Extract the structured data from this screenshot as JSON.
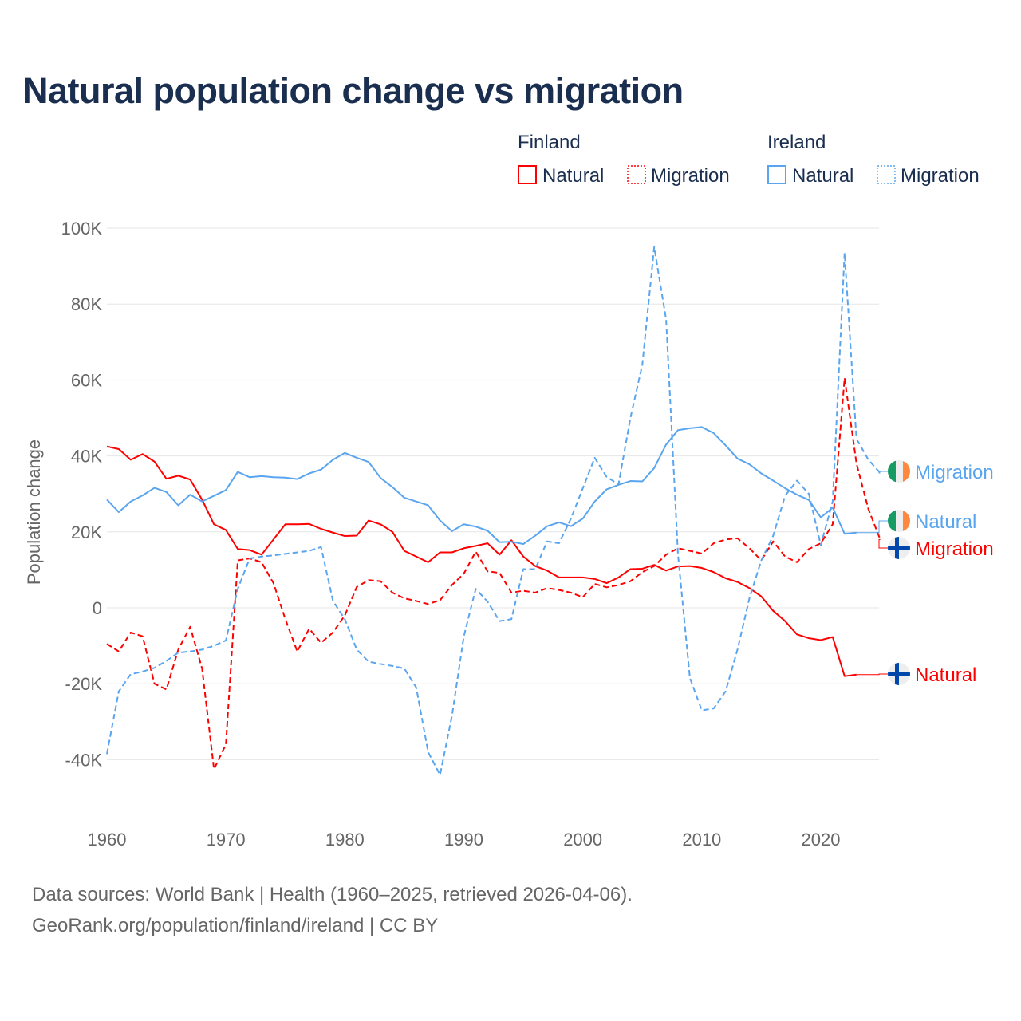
{
  "chart_data": {
    "type": "line",
    "title": "Natural population change vs migration",
    "xlabel": "",
    "ylabel": "Population change",
    "xlim": [
      1960,
      2025
    ],
    "ylim": [
      -50000,
      100000
    ],
    "x_ticks": [
      "1960",
      "1970",
      "1980",
      "1990",
      "2000",
      "2010",
      "2020"
    ],
    "y_ticks": [
      {
        "value": 100000,
        "label": "100K"
      },
      {
        "value": 80000,
        "label": "80K"
      },
      {
        "value": 60000,
        "label": "60K"
      },
      {
        "value": 40000,
        "label": "40K"
      },
      {
        "value": 20000,
        "label": "20K"
      },
      {
        "value": 0,
        "label": "0"
      },
      {
        "value": -20000,
        "label": "-20K"
      },
      {
        "value": -40000,
        "label": "-40K"
      }
    ],
    "grid": true,
    "legend": {
      "placement": "top-right",
      "groups": [
        {
          "name": "Finland",
          "entries": [
            "Natural",
            "Migration"
          ]
        },
        {
          "name": "Ireland",
          "entries": [
            "Natural",
            "Migration"
          ]
        }
      ]
    },
    "start_year": 1960,
    "series": [
      {
        "country": "Finland",
        "name": "Natural",
        "label": "Natural",
        "color": "#ff0000",
        "dash": false,
        "flag": "finland",
        "values": [
          42.5,
          41.8,
          39,
          40.5,
          38.5,
          34,
          34.8,
          33.8,
          28.5,
          22,
          20.5,
          15.5,
          15.2,
          14,
          18,
          22,
          22,
          22.1,
          20.8,
          19.8,
          18.9,
          19,
          23,
          22,
          20,
          15,
          13.5,
          12,
          14.6,
          14.6,
          15.7,
          16.3,
          17,
          14,
          17.8,
          13.5,
          11,
          9.8,
          8,
          8,
          8,
          7.6,
          6.5,
          8,
          10.2,
          10.3,
          11.3,
          9.8,
          10.9,
          11,
          10.5,
          9.4,
          7.8,
          6.8,
          5.2,
          3,
          -0.8,
          -3.5,
          -7,
          -8,
          -8.5,
          -7.7,
          -18,
          -17.6
        ]
      },
      {
        "country": "Finland",
        "name": "Migration",
        "label": "Migration",
        "color": "#ff0000",
        "dash": true,
        "flag": "finland",
        "values": [
          -9.5,
          -11.5,
          -6.5,
          -7.5,
          -20,
          -21.5,
          -11,
          -5,
          -16,
          -42.5,
          -36,
          12.5,
          13,
          12,
          6.5,
          -3,
          -11.5,
          -5.5,
          -9.2,
          -6.5,
          -2,
          5.5,
          7.3,
          7,
          4,
          2.5,
          1.8,
          1,
          2,
          6,
          9,
          14.8,
          9.6,
          9.2,
          4,
          4.5,
          4,
          5.2,
          4.7,
          4,
          2.8,
          6.3,
          5.4,
          6,
          7,
          9.4,
          11,
          14,
          15.7,
          15,
          14.3,
          17,
          18,
          18.3,
          15.7,
          12.5,
          17.5,
          13.5,
          12,
          15.5,
          17,
          22,
          60.5,
          38,
          26,
          18
        ]
      },
      {
        "country": "Ireland",
        "name": "Natural",
        "label": "Natural",
        "color": "#5aa5ef",
        "dash": false,
        "flag": "ireland",
        "values": [
          28.5,
          25.2,
          28,
          29.6,
          31.6,
          30.5,
          27,
          29.8,
          28,
          29.5,
          31,
          35.8,
          34.4,
          34.7,
          34.4,
          34.3,
          33.9,
          35.4,
          36.4,
          39,
          40.8,
          39.5,
          38.4,
          34.2,
          31.8,
          29,
          28,
          27,
          23,
          20.2,
          22,
          21.4,
          20.3,
          17.3,
          17.4,
          16.8,
          19,
          21.5,
          22.5,
          21.5,
          23.5,
          28,
          31.2,
          32.4,
          33.4,
          33.3,
          36.8,
          43,
          46.8,
          47.3,
          47.6,
          46,
          42.8,
          39.3,
          37.8,
          35.4,
          33.5,
          31.5,
          29.8,
          28.4,
          23.8,
          26.4,
          19.5,
          19.8
        ]
      },
      {
        "country": "Ireland",
        "name": "Migration",
        "label": "Migration",
        "color": "#5aa5ef",
        "dash": true,
        "flag": "ireland",
        "values": [
          -38.5,
          -22,
          -17.5,
          -16.8,
          -15.8,
          -14,
          -11.8,
          -11.5,
          -11,
          -10,
          -8.6,
          5,
          13,
          13.5,
          13.8,
          14.2,
          14.6,
          15,
          16,
          1.8,
          -3,
          -11,
          -14.2,
          -14.8,
          -15.3,
          -16,
          -21,
          -38,
          -44,
          -28.5,
          -7.5,
          5,
          1.6,
          -3.5,
          -3,
          10.2,
          10.2,
          17.5,
          17,
          23.5,
          31.5,
          39.5,
          34.5,
          32.5,
          50,
          64,
          95,
          76,
          14,
          -18.5,
          -27,
          -26.5,
          -22,
          -11,
          2.5,
          12.5,
          19,
          29.5,
          33.5,
          30,
          16.5,
          28,
          93.5,
          44.5,
          39,
          35.5
        ]
      }
    ],
    "value_unit": "thousands"
  },
  "footer": {
    "line1": "Data sources: World Bank | Health (1960–2025, retrieved 2026-04-06).",
    "line2": "GeoRank.org/population/finland/ireland | CC BY"
  }
}
